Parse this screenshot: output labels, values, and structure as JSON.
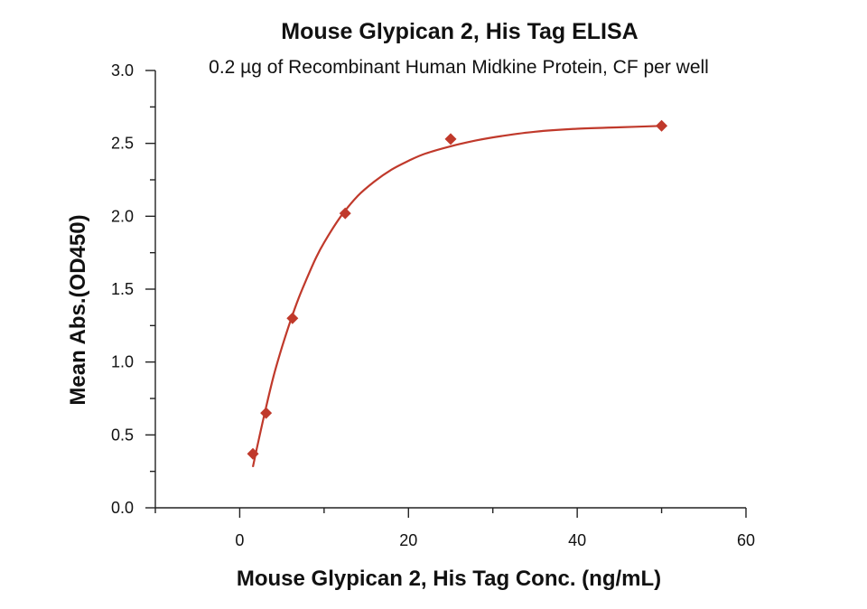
{
  "chart_data": {
    "type": "scatter",
    "title": "Mouse Glypican 2, His Tag ELISA",
    "subtitle": "0.2 µg of Recombinant Human Midkine Protein, CF per well",
    "xlabel": "Mouse Glypican 2, His Tag Conc. (ng/mL)",
    "ylabel": "Mean Abs.(OD450)",
    "xlim": [
      -10,
      60
    ],
    "ylim": [
      0,
      3.0
    ],
    "x_ticks": [
      0,
      20,
      40,
      60
    ],
    "x_tick_labels": [
      "0",
      "20",
      "40",
      "60"
    ],
    "y_ticks": [
      0,
      0.5,
      1.0,
      1.5,
      2.0,
      2.5,
      3.0
    ],
    "y_tick_labels": [
      "0.0",
      "0.5",
      "1.0",
      "1.5",
      "2.0",
      "2.5",
      "3.0"
    ],
    "series": [
      {
        "name": "Mouse Glypican 2, His Tag",
        "marker": "diamond",
        "color": "#c0392b",
        "x": [
          1.5625,
          3.125,
          6.25,
          12.5,
          25,
          50
        ],
        "y": [
          0.37,
          0.65,
          1.3,
          2.02,
          2.53,
          2.62
        ],
        "fit_curve": {
          "x": [
            1.56,
            2,
            3,
            4,
            5,
            6,
            7,
            8,
            9,
            10,
            12,
            14,
            16,
            18,
            20,
            22,
            25,
            28,
            31,
            35,
            40,
            45,
            50
          ],
          "y": [
            0.28,
            0.4,
            0.66,
            0.9,
            1.1,
            1.28,
            1.44,
            1.58,
            1.71,
            1.82,
            2.0,
            2.14,
            2.24,
            2.32,
            2.38,
            2.43,
            2.48,
            2.52,
            2.55,
            2.58,
            2.6,
            2.61,
            2.62
          ]
        }
      }
    ]
  }
}
